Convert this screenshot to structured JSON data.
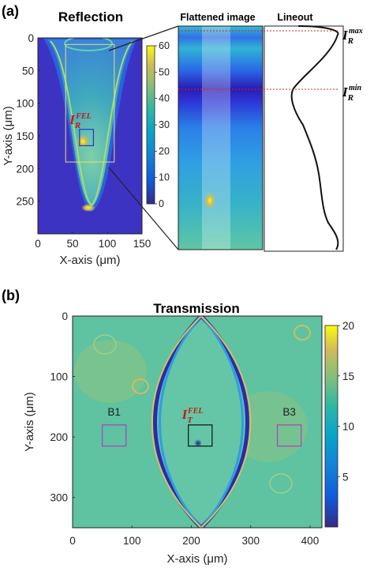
{
  "chart_data": [
    {
      "panel_label": "(a)",
      "type": "heatmap",
      "title": "Reflection",
      "xlabel": "X-axis (μm)",
      "ylabel": "Y-axis (μm)",
      "xlim": [
        0,
        150
      ],
      "ylim": [
        300,
        0
      ],
      "xticks": [
        0,
        50,
        100,
        150
      ],
      "yticks": [
        0,
        50,
        100,
        150,
        200,
        250
      ],
      "colorbar": {
        "min": 0,
        "max": 60,
        "ticks": [
          0,
          10,
          20,
          30,
          40,
          50,
          60
        ]
      },
      "marker_label": {
        "main": "I",
        "sub": "R",
        "sup": "FEL"
      },
      "marker_box": {
        "x": [
          60,
          80
        ],
        "y": [
          140,
          165
        ]
      },
      "region_box": {
        "x": [
          40,
          110
        ],
        "y": [
          10,
          190
        ]
      }
    },
    {
      "type": "heatmap",
      "title": "Flattened image"
    },
    {
      "type": "line",
      "title": "Lineout",
      "annotations": [
        {
          "main": "I",
          "sub": "R",
          "sup": "max"
        },
        {
          "main": "I",
          "sub": "R",
          "sup": "min"
        }
      ]
    },
    {
      "panel_label": "(b)",
      "type": "heatmap",
      "title": "Transmission",
      "xlabel": "X-axis (μm)",
      "ylabel": "Y-axis (μm)",
      "xlim": [
        0,
        420
      ],
      "ylim": [
        350,
        0
      ],
      "xticks": [
        0,
        100,
        200,
        300,
        400
      ],
      "yticks": [
        0,
        100,
        200,
        300
      ],
      "colorbar": {
        "min": 0,
        "max": 20,
        "ticks": [
          5,
          10,
          15,
          20
        ]
      },
      "boxes": [
        {
          "label": "B1",
          "x": [
            50,
            90
          ],
          "y": [
            180,
            215
          ]
        },
        {
          "label": "",
          "x": [
            195,
            235
          ],
          "y": [
            180,
            215
          ]
        },
        {
          "label": "B3",
          "x": [
            345,
            385
          ],
          "y": [
            180,
            215
          ]
        }
      ],
      "marker_label": {
        "main": "I",
        "sub": "T",
        "sup": "FEL"
      }
    }
  ]
}
